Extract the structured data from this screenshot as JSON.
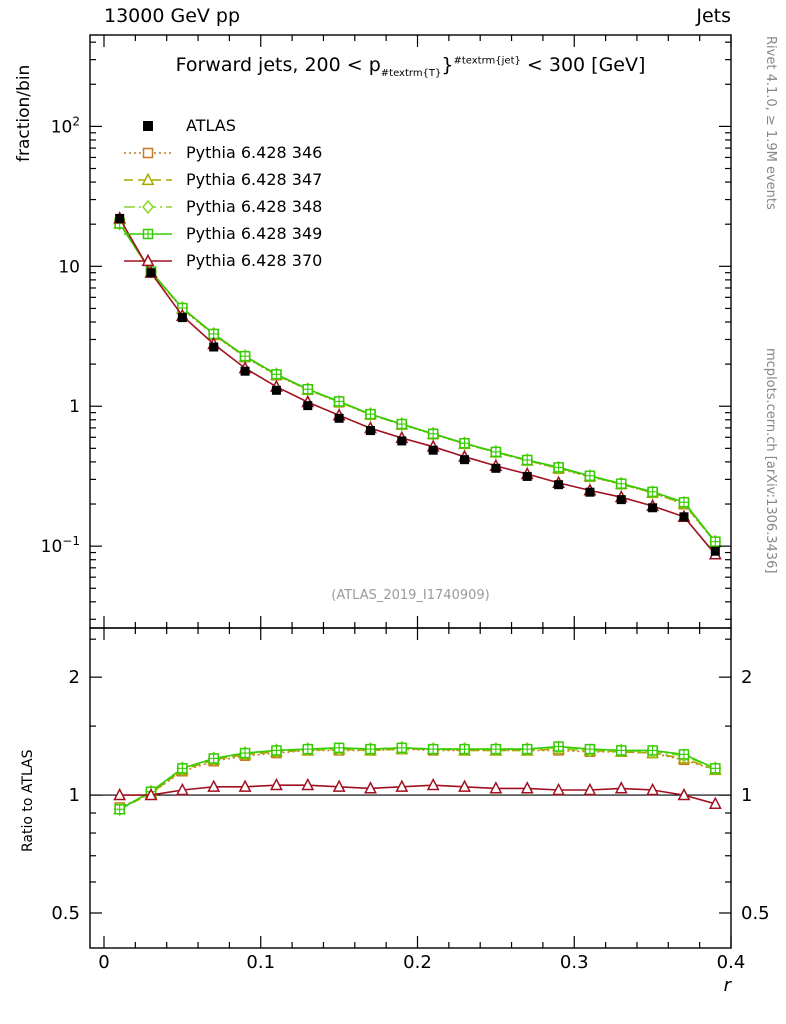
{
  "header": {
    "left": "13000 GeV pp",
    "right": "Jets"
  },
  "title": {
    "pre": "Forward jets, 200 < p",
    "sub": "#textrm{T}",
    "mid": "}",
    "sup": "#textrm{jet}",
    "post": " < 300 [GeV]"
  },
  "side": {
    "rivet": "Rivet 4.1.0, ≥ 1.9M events",
    "mcplots": "mcplots.cern.ch [arXiv:1306.3436]"
  },
  "watermark": "(ATLAS_2019_I1740909)",
  "chart_data": {
    "type": "line",
    "title": "Forward jets, 200 < p_{#textrm{T}}^{#textrm{jet}} < 300 [GeV]",
    "xlabel": "r",
    "xlim": [
      -0.00893,
      0.4
    ],
    "xticks": [
      {
        "v": 0.0,
        "label": "0"
      },
      {
        "v": 0.1,
        "label": "0.1"
      },
      {
        "v": 0.2,
        "label": "0.2"
      },
      {
        "v": 0.3,
        "label": "0.3"
      },
      {
        "v": 0.4,
        "label": "0.4"
      }
    ],
    "top": {
      "ylabel": "fraction/bin",
      "yscale": "log",
      "ylim": [
        0.026,
        450
      ],
      "yticks": [
        {
          "v": 100,
          "label": "10^2"
        },
        {
          "v": 10,
          "label": "10"
        },
        {
          "v": 1,
          "label": "1"
        },
        {
          "v": 0.1,
          "label": "10^-1"
        }
      ]
    },
    "bottom": {
      "ylabel": "Ratio to ATLAS",
      "yscale": "log",
      "ylim": [
        0.407,
        2.67
      ],
      "yticks": [
        {
          "v": 2,
          "label": "2"
        },
        {
          "v": 1,
          "label": "1"
        },
        {
          "v": 0.5,
          "label": "0.5"
        }
      ],
      "yminors": [
        0.6,
        0.7,
        0.8,
        0.9,
        1.5,
        2.5
      ],
      "refline": 1.0
    },
    "x": [
      0.01,
      0.03,
      0.05,
      0.07,
      0.09,
      0.11,
      0.13,
      0.15,
      0.17,
      0.19,
      0.21,
      0.23,
      0.25,
      0.27,
      0.29,
      0.31,
      0.33,
      0.35,
      0.37,
      0.39
    ],
    "atlas": {
      "name": "ATLAS",
      "color": "#000000",
      "marker": "square-filled",
      "values": [
        22.0,
        9.0,
        4.3,
        2.65,
        1.78,
        1.3,
        1.01,
        0.82,
        0.67,
        0.565,
        0.485,
        0.415,
        0.36,
        0.315,
        0.275,
        0.243,
        0.215,
        0.188,
        0.162,
        0.092
      ]
    },
    "series": [
      {
        "name": "Pythia 6.428 346",
        "color": "#c87820",
        "line": "dotted",
        "marker": "square",
        "ratio": [
          0.93,
          1.01,
          1.15,
          1.22,
          1.26,
          1.28,
          1.3,
          1.3,
          1.3,
          1.31,
          1.3,
          1.3,
          1.3,
          1.3,
          1.3,
          1.29,
          1.29,
          1.28,
          1.23,
          1.16
        ]
      },
      {
        "name": "Pythia 6.428 347",
        "color": "#a8a800",
        "line": "dashed",
        "marker": "triangle",
        "ratio": [
          0.92,
          1.01,
          1.16,
          1.23,
          1.27,
          1.29,
          1.3,
          1.31,
          1.3,
          1.31,
          1.31,
          1.3,
          1.3,
          1.3,
          1.31,
          1.3,
          1.29,
          1.28,
          1.24,
          1.16
        ]
      },
      {
        "name": "Pythia 6.428 348",
        "color": "#8cd42a",
        "line": "dashdot",
        "marker": "diamond",
        "ratio": [
          0.92,
          1.02,
          1.17,
          1.24,
          1.28,
          1.3,
          1.31,
          1.31,
          1.31,
          1.32,
          1.31,
          1.31,
          1.31,
          1.31,
          1.32,
          1.3,
          1.3,
          1.29,
          1.26,
          1.17
        ]
      },
      {
        "name": "Pythia 6.428 349",
        "color": "#33cc00",
        "line": "solid",
        "marker": "square-plus",
        "ratio": [
          0.92,
          1.02,
          1.17,
          1.24,
          1.28,
          1.3,
          1.31,
          1.32,
          1.31,
          1.32,
          1.31,
          1.31,
          1.31,
          1.31,
          1.33,
          1.31,
          1.3,
          1.3,
          1.27,
          1.17
        ]
      },
      {
        "name": "Pythia 6.428 370",
        "color": "#a01020",
        "line": "solid",
        "marker": "triangle",
        "ratio": [
          1.0,
          1.0,
          1.03,
          1.05,
          1.05,
          1.06,
          1.06,
          1.05,
          1.04,
          1.05,
          1.06,
          1.05,
          1.04,
          1.04,
          1.03,
          1.03,
          1.04,
          1.03,
          1.0,
          0.95
        ]
      }
    ]
  }
}
